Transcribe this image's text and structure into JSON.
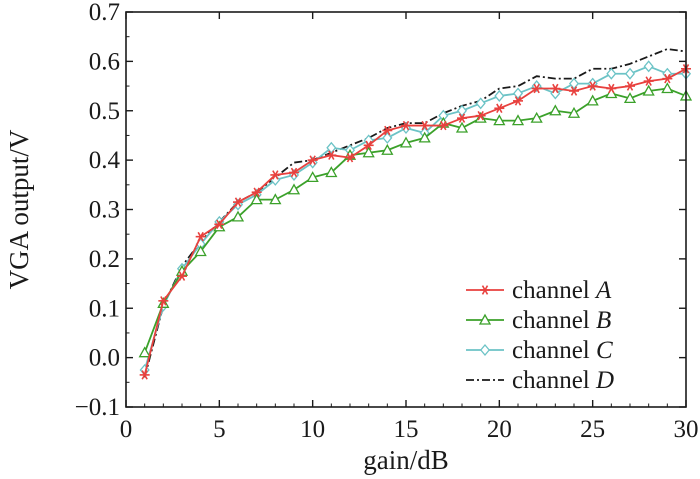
{
  "chart_data": {
    "type": "line",
    "xlabel": "gain/dB",
    "ylabel": "VGA output/V",
    "xlim": [
      0,
      30
    ],
    "ylim": [
      -0.1,
      0.7
    ],
    "xticks": [
      0,
      5,
      10,
      15,
      20,
      25,
      30
    ],
    "xtick_labels": [
      "0",
      "5",
      "10",
      "15",
      "20",
      "25",
      "30"
    ],
    "yticks": [
      -0.1,
      0.0,
      0.1,
      0.2,
      0.3,
      0.4,
      0.5,
      0.6,
      0.7
    ],
    "ytick_labels": [
      "−0.1",
      "0.0",
      "0.1",
      "0.2",
      "0.3",
      "0.4",
      "0.5",
      "0.6",
      "0.7"
    ],
    "legend_position": "bottom-right",
    "x": [
      1,
      2,
      3,
      4,
      5,
      6,
      7,
      8,
      9,
      10,
      11,
      12,
      13,
      14,
      15,
      16,
      17,
      18,
      19,
      20,
      21,
      22,
      23,
      24,
      25,
      26,
      27,
      28,
      29,
      30
    ],
    "series": [
      {
        "name": "channel A",
        "label_prefix": "channel ",
        "label_italic": "A",
        "color": "#e8413e",
        "marker": "asterisk",
        "dash": "solid",
        "values": [
          -0.035,
          0.115,
          0.165,
          0.245,
          0.27,
          0.315,
          0.335,
          0.37,
          0.375,
          0.4,
          0.41,
          0.405,
          0.43,
          0.46,
          0.47,
          0.47,
          0.47,
          0.485,
          0.49,
          0.505,
          0.52,
          0.545,
          0.545,
          0.54,
          0.55,
          0.545,
          0.55,
          0.56,
          0.565,
          0.585
        ]
      },
      {
        "name": "channel B",
        "label_prefix": "channel ",
        "label_italic": "B",
        "color": "#3ba12a",
        "marker": "triangle",
        "dash": "solid",
        "values": [
          0.01,
          0.11,
          0.175,
          0.215,
          0.265,
          0.285,
          0.32,
          0.32,
          0.34,
          0.365,
          0.375,
          0.41,
          0.415,
          0.42,
          0.435,
          0.445,
          0.475,
          0.465,
          0.485,
          0.48,
          0.48,
          0.485,
          0.5,
          0.495,
          0.52,
          0.535,
          0.525,
          0.54,
          0.545,
          0.53
        ]
      },
      {
        "name": "channel C",
        "label_prefix": "channel ",
        "label_italic": "C",
        "color": "#6cc3c6",
        "marker": "diamond",
        "dash": "solid",
        "values": [
          -0.025,
          0.105,
          0.18,
          0.23,
          0.275,
          0.31,
          0.33,
          0.36,
          0.37,
          0.395,
          0.425,
          0.42,
          0.44,
          0.445,
          0.465,
          0.455,
          0.49,
          0.5,
          0.515,
          0.53,
          0.535,
          0.55,
          0.535,
          0.555,
          0.555,
          0.575,
          0.575,
          0.59,
          0.575,
          0.575
        ]
      },
      {
        "name": "channel D",
        "label_prefix": "channel ",
        "label_italic": "D",
        "color": "#1a1a1a",
        "marker": "none",
        "dash": "dashdot",
        "values": [
          -0.04,
          0.105,
          0.185,
          0.235,
          0.275,
          0.315,
          0.335,
          0.365,
          0.395,
          0.4,
          0.415,
          0.43,
          0.445,
          0.465,
          0.475,
          0.475,
          0.495,
          0.51,
          0.52,
          0.545,
          0.55,
          0.57,
          0.565,
          0.565,
          0.585,
          0.585,
          0.595,
          0.61,
          0.625,
          0.62
        ]
      }
    ]
  }
}
